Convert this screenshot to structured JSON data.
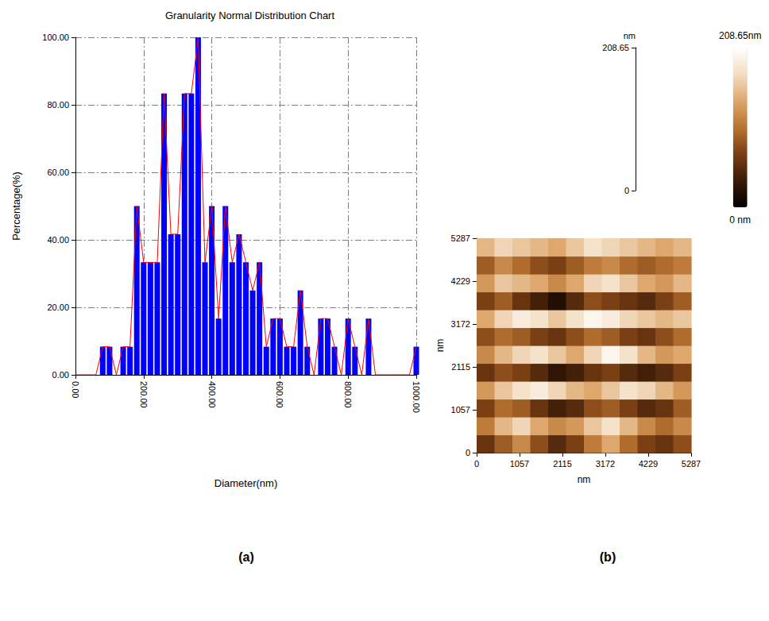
{
  "chart_data": [
    {
      "type": "bar",
      "title": "Granularity Normal Distribution Chart",
      "xlabel": "Diameter(nm)",
      "ylabel": "Percentage(%)",
      "annotations": [
        "(a)"
      ],
      "x": [
        0,
        20,
        40,
        60,
        80,
        100,
        120,
        140,
        160,
        180,
        200,
        220,
        240,
        260,
        280,
        300,
        320,
        340,
        360,
        380,
        400,
        420,
        440,
        460,
        480,
        500,
        520,
        540,
        560,
        580,
        600,
        620,
        640,
        660,
        680,
        700,
        720,
        740,
        760,
        780,
        800,
        820,
        840,
        860,
        880,
        900,
        920,
        940,
        960,
        980,
        1000
      ],
      "series": [
        {
          "type": "bar",
          "color": "#0000ff",
          "values": [
            0,
            0,
            0,
            0,
            8.33,
            8.33,
            0,
            8.33,
            8.33,
            50,
            33.33,
            33.33,
            33.33,
            83.33,
            41.67,
            41.67,
            83.33,
            83.33,
            100,
            33.33,
            50,
            16.67,
            50,
            33.33,
            41.67,
            33.33,
            25,
            33.33,
            8.33,
            16.67,
            16.67,
            8.33,
            8.33,
            25,
            8.33,
            0,
            16.67,
            16.67,
            8.33,
            0,
            16.67,
            8.33,
            0,
            16.67,
            0,
            0,
            0,
            0,
            0,
            0,
            8.33
          ]
        },
        {
          "type": "line",
          "color": "#ff0000",
          "values": [
            0,
            0,
            0,
            0,
            8.33,
            8.33,
            0,
            8.33,
            8.33,
            50,
            33.33,
            33.33,
            33.33,
            83.33,
            41.67,
            41.67,
            83.33,
            83.33,
            100,
            33.33,
            50,
            16.67,
            50,
            33.33,
            41.67,
            33.33,
            25,
            33.33,
            8.33,
            16.67,
            16.67,
            8.33,
            8.33,
            25,
            8.33,
            0,
            16.67,
            16.67,
            8.33,
            0,
            16.67,
            8.33,
            0,
            16.67,
            0,
            0,
            0,
            0,
            0,
            0,
            8.33
          ]
        }
      ],
      "xlim": [
        0,
        1000
      ],
      "xticks": [
        {
          "value": 0,
          "label": "0.00"
        },
        {
          "value": 200,
          "label": "200.00"
        },
        {
          "value": 400,
          "label": "400.00"
        },
        {
          "value": 600,
          "label": "600.00"
        },
        {
          "value": 800,
          "label": "800.00"
        },
        {
          "value": 1000,
          "label": "1000.00"
        }
      ],
      "ylim": [
        0,
        100
      ],
      "yticks": [
        {
          "value": 0,
          "label": "0.00"
        },
        {
          "value": 20,
          "label": "20.00"
        },
        {
          "value": 40,
          "label": "40.00"
        },
        {
          "value": 60,
          "label": "60.00"
        },
        {
          "value": 80,
          "label": "80.00"
        },
        {
          "value": 100,
          "label": "100.00"
        }
      ],
      "grid": true
    },
    {
      "type": "heatmap",
      "annotations": [
        "(b)"
      ],
      "xlabel": "nm",
      "ylabel": "nm",
      "xlim": [
        0,
        5287
      ],
      "ylim": [
        0,
        5287
      ],
      "xticks": [
        0,
        1057,
        2115,
        3172,
        4229,
        5287
      ],
      "yticks": [
        0,
        1057,
        2115,
        3172,
        4229,
        5287
      ],
      "z": [
        [
          60,
          90,
          120,
          80,
          50,
          70,
          110,
          140,
          100,
          70,
          60,
          80
        ],
        [
          110,
          150,
          170,
          140,
          120,
          130,
          160,
          180,
          150,
          120,
          100,
          120
        ],
        [
          70,
          100,
          90,
          60,
          40,
          50,
          80,
          90,
          70,
          50,
          60,
          90
        ],
        [
          130,
          160,
          180,
          190,
          170,
          150,
          140,
          160,
          180,
          170,
          150,
          130
        ],
        [
          60,
          80,
          70,
          50,
          30,
          40,
          60,
          70,
          50,
          40,
          50,
          70
        ],
        [
          120,
          150,
          170,
          180,
          160,
          140,
          170,
          200,
          180,
          150,
          130,
          140
        ],
        [
          80,
          100,
          90,
          70,
          60,
          80,
          100,
          90,
          70,
          60,
          80,
          100
        ],
        [
          140,
          170,
          190,
          180,
          160,
          180,
          200,
          190,
          170,
          160,
          150,
          160
        ],
        [
          70,
          90,
          60,
          40,
          20,
          50,
          80,
          70,
          60,
          50,
          70,
          90
        ],
        [
          130,
          160,
          150,
          140,
          120,
          140,
          170,
          180,
          160,
          140,
          130,
          150
        ],
        [
          90,
          120,
          100,
          80,
          70,
          90,
          110,
          120,
          100,
          90,
          100,
          110
        ],
        [
          150,
          170,
          160,
          150,
          140,
          160,
          180,
          170,
          160,
          150,
          140,
          150
        ]
      ],
      "zlim": [
        0,
        208.65
      ],
      "zticks": [
        0,
        208.65
      ],
      "zlabel": "nm",
      "colorbar": {
        "range": [
          0,
          208.65
        ],
        "ticks": [
          {
            "value": 0,
            "label": "0 nm"
          },
          {
            "value": 208.65,
            "label": "208.65nm"
          }
        ]
      }
    }
  ]
}
